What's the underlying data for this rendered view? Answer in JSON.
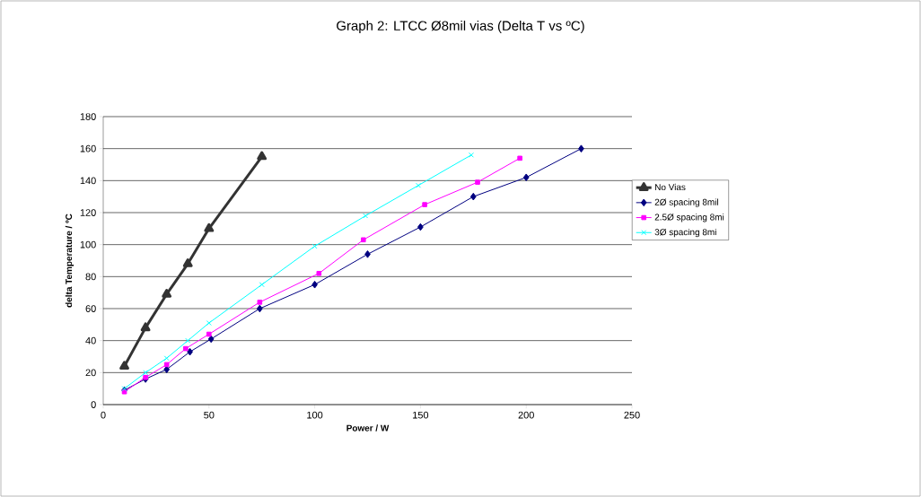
{
  "chart_data": {
    "type": "line",
    "title": "Graph 2: LTCC Ø8mil vias (Delta T  vs ºC)",
    "xlabel": "Power / W",
    "ylabel": "delta Temperature / ºC",
    "xlim": [
      0,
      250
    ],
    "xticks": [
      0,
      50,
      100,
      150,
      200,
      250
    ],
    "ylim": [
      0,
      180
    ],
    "yticks": [
      0,
      20,
      40,
      60,
      80,
      100,
      120,
      140,
      160,
      180
    ],
    "grid": "y",
    "legend": "right",
    "line_style": "solid",
    "series": [
      {
        "name": "No Vias",
        "color": "#333333",
        "marker": "triangle",
        "x": [
          10,
          20,
          30,
          40,
          50,
          75
        ],
        "values": [
          24,
          48,
          69,
          88,
          110,
          155
        ]
      },
      {
        "name": "2Ø spacing 8mil",
        "color": "#000080",
        "marker": "diamond",
        "x": [
          10,
          20,
          30,
          41,
          51,
          74,
          100,
          125,
          150,
          175,
          200,
          226
        ],
        "values": [
          9,
          16,
          22,
          33,
          41,
          60,
          75,
          94,
          111,
          130,
          142,
          160
        ]
      },
      {
        "name": "2.5Ø spacing 8mi",
        "color": "#ff00ff",
        "marker": "square",
        "x": [
          10,
          20,
          30,
          39,
          50,
          74,
          102,
          123,
          152,
          177,
          197
        ],
        "values": [
          8,
          17,
          25,
          35,
          44,
          64,
          82,
          103,
          125,
          139,
          154
        ]
      },
      {
        "name": "3Ø spacing 8mi",
        "color": "#00ffff",
        "marker": "cross",
        "x": [
          10,
          20,
          30,
          40,
          50,
          75,
          100,
          124,
          149,
          174
        ],
        "values": [
          10,
          20,
          29,
          40,
          51,
          75,
          99,
          118,
          137,
          156
        ]
      }
    ]
  }
}
